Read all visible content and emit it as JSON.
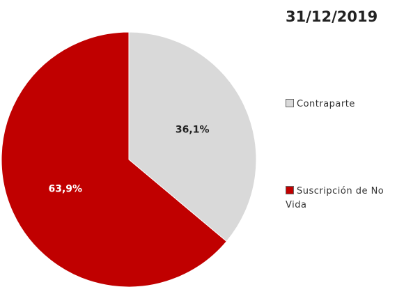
{
  "chart_data": {
    "type": "pie",
    "title": "31/12/2019",
    "categories": [
      "Contraparte",
      "Suscripción de No Vida"
    ],
    "values": [
      36.1,
      63.9
    ],
    "value_labels": [
      "36,1%",
      "63,9%"
    ],
    "colors": [
      "#d9d9d9",
      "#c00000"
    ]
  }
}
